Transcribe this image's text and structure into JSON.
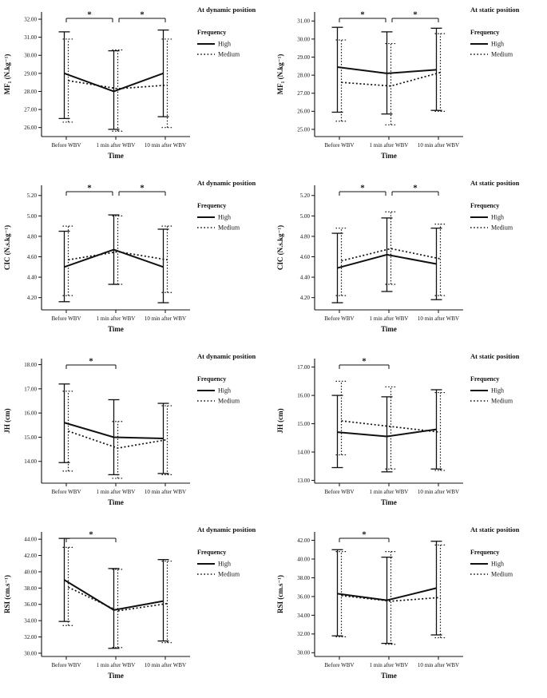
{
  "figure": {
    "xlabel": "Time",
    "categories": [
      "Before WBV",
      "1 min after WBV",
      "10 min after WBV"
    ],
    "legend": {
      "title": "Frequency",
      "items": [
        {
          "label": "High",
          "style": "solid"
        },
        {
          "label": "Medium",
          "style": "dotted"
        }
      ]
    },
    "line_color": "#111111",
    "significance_symbol": "*"
  },
  "chart_data": [
    {
      "id": "mf1-dynamic",
      "type": "line",
      "position_label": "At dynamic position",
      "ylabel": "MF₁ (N.kg⁻¹)",
      "xlabel": "Time",
      "categories": [
        "Before WBV",
        "1 min after WBV",
        "10 min after WBV"
      ],
      "yticks": [
        26,
        27,
        28,
        29,
        30,
        31,
        32
      ],
      "ylim": [
        25.5,
        32.4
      ],
      "series": [
        {
          "name": "High",
          "style": "solid",
          "means": [
            29.0,
            28.0,
            29.0
          ],
          "err_lo": [
            26.5,
            25.9,
            26.6
          ],
          "err_hi": [
            31.3,
            30.25,
            31.4
          ]
        },
        {
          "name": "Medium",
          "style": "dotted",
          "means": [
            28.6,
            28.15,
            28.35
          ],
          "err_lo": [
            26.3,
            25.8,
            26.0
          ],
          "err_hi": [
            30.9,
            30.3,
            30.9
          ]
        }
      ],
      "significance": [
        {
          "from": 0,
          "to": 1,
          "label": "*"
        },
        {
          "from": 1,
          "to": 2,
          "label": "*"
        }
      ]
    },
    {
      "id": "mf1-static",
      "type": "line",
      "position_label": "At static position",
      "ylabel": "MF₁ (N.kg⁻¹)",
      "xlabel": "Time",
      "categories": [
        "Before WBV",
        "1 min after WBV",
        "10 min after WBV"
      ],
      "yticks": [
        25,
        26,
        27,
        28,
        29,
        30,
        31
      ],
      "ylim": [
        24.6,
        31.5
      ],
      "series": [
        {
          "name": "High",
          "style": "solid",
          "means": [
            28.45,
            28.1,
            28.3
          ],
          "err_lo": [
            25.95,
            25.85,
            26.05
          ],
          "err_hi": [
            30.65,
            30.4,
            30.6
          ]
        },
        {
          "name": "Medium",
          "style": "dotted",
          "means": [
            27.6,
            27.4,
            28.15
          ],
          "err_lo": [
            25.45,
            25.25,
            26.0
          ],
          "err_hi": [
            29.95,
            29.75,
            30.3
          ]
        }
      ],
      "significance": [
        {
          "from": 0,
          "to": 1,
          "label": "*"
        },
        {
          "from": 1,
          "to": 2,
          "label": "*"
        }
      ]
    },
    {
      "id": "cic-dynamic",
      "type": "line",
      "position_label": "At dynamic position",
      "ylabel": "CIC (N.s.kg⁻¹)",
      "xlabel": "Time",
      "categories": [
        "Before WBV",
        "1 min after WBV",
        "10 min after WBV"
      ],
      "yticks": [
        4.2,
        4.4,
        4.6,
        4.8,
        5.0,
        5.2
      ],
      "ylim": [
        4.08,
        5.3
      ],
      "series": [
        {
          "name": "High",
          "style": "solid",
          "means": [
            4.5,
            4.67,
            4.5
          ],
          "err_lo": [
            4.16,
            4.33,
            4.15
          ],
          "err_hi": [
            4.85,
            5.01,
            4.87
          ]
        },
        {
          "name": "Medium",
          "style": "dotted",
          "means": [
            4.57,
            4.65,
            4.57
          ],
          "err_lo": [
            4.22,
            4.33,
            4.25
          ],
          "err_hi": [
            4.9,
            5.0,
            4.9
          ]
        }
      ],
      "significance": [
        {
          "from": 0,
          "to": 1,
          "label": "*"
        },
        {
          "from": 1,
          "to": 2,
          "label": "*"
        }
      ]
    },
    {
      "id": "cic-static",
      "type": "line",
      "position_label": "At static position",
      "ylabel": "CIC (N.s.kg⁻¹)",
      "xlabel": "Time",
      "categories": [
        "Before WBV",
        "1 min after WBV",
        "10 min after WBV"
      ],
      "yticks": [
        4.2,
        4.4,
        4.6,
        4.8,
        5.0,
        5.2
      ],
      "ylim": [
        4.08,
        5.3
      ],
      "series": [
        {
          "name": "High",
          "style": "solid",
          "means": [
            4.49,
            4.62,
            4.53
          ],
          "err_lo": [
            4.15,
            4.26,
            4.18
          ],
          "err_hi": [
            4.83,
            4.98,
            4.88
          ]
        },
        {
          "name": "Medium",
          "style": "dotted",
          "means": [
            4.56,
            4.68,
            4.58
          ],
          "err_lo": [
            4.22,
            4.33,
            4.22
          ],
          "err_hi": [
            4.88,
            5.04,
            4.92
          ]
        }
      ],
      "significance": [
        {
          "from": 0,
          "to": 1,
          "label": "*"
        },
        {
          "from": 1,
          "to": 2,
          "label": "*"
        }
      ]
    },
    {
      "id": "jh-dynamic",
      "type": "line",
      "position_label": "At dynamic position",
      "ylabel": "JH (cm)",
      "xlabel": "Time",
      "categories": [
        "Before WBV",
        "1 min after WBV",
        "10 min after WBV"
      ],
      "yticks": [
        14,
        15,
        16,
        17,
        18
      ],
      "ylim": [
        13.1,
        18.25
      ],
      "series": [
        {
          "name": "High",
          "style": "solid",
          "means": [
            15.6,
            15.0,
            14.95
          ],
          "err_lo": [
            13.95,
            13.45,
            13.5
          ],
          "err_hi": [
            17.2,
            16.55,
            16.4
          ]
        },
        {
          "name": "Medium",
          "style": "dotted",
          "means": [
            15.25,
            14.55,
            14.9
          ],
          "err_lo": [
            13.6,
            13.3,
            13.45
          ],
          "err_hi": [
            16.9,
            15.65,
            16.3
          ]
        }
      ],
      "significance": [
        {
          "from": 0,
          "to": 1,
          "label": "*"
        }
      ]
    },
    {
      "id": "jh-static",
      "type": "line",
      "position_label": "At static position",
      "ylabel": "JH (cm)",
      "xlabel": "Time",
      "categories": [
        "Before WBV",
        "1 min after WBV",
        "10 min after WBV"
      ],
      "yticks": [
        13,
        14,
        15,
        16,
        17
      ],
      "ylim": [
        12.9,
        17.3
      ],
      "series": [
        {
          "name": "High",
          "style": "solid",
          "means": [
            14.7,
            14.55,
            14.8
          ],
          "err_lo": [
            13.45,
            13.3,
            13.4
          ],
          "err_hi": [
            16.0,
            15.95,
            16.2
          ]
        },
        {
          "name": "Medium",
          "style": "dotted",
          "means": [
            15.1,
            14.9,
            14.7
          ],
          "err_lo": [
            13.9,
            13.4,
            13.35
          ],
          "err_hi": [
            16.5,
            16.3,
            16.1
          ]
        }
      ],
      "significance": [
        {
          "from": 0,
          "to": 1,
          "label": "*"
        }
      ]
    },
    {
      "id": "rsi-dynamic",
      "type": "line",
      "position_label": "At dynamic position",
      "ylabel": "RSI (cm.s⁻¹)",
      "xlabel": "Time",
      "categories": [
        "Before WBV",
        "1 min after WBV",
        "10 min after WBV"
      ],
      "yticks": [
        30,
        32,
        34,
        36,
        38,
        40,
        42,
        44
      ],
      "ylim": [
        29.6,
        44.9
      ],
      "series": [
        {
          "name": "High",
          "style": "solid",
          "means": [
            39.0,
            35.3,
            36.4
          ],
          "err_lo": [
            33.9,
            30.6,
            31.5
          ],
          "err_hi": [
            44.1,
            40.4,
            41.5
          ]
        },
        {
          "name": "Medium",
          "style": "dotted",
          "means": [
            38.1,
            35.2,
            36.1
          ],
          "err_lo": [
            33.4,
            30.7,
            31.3
          ],
          "err_hi": [
            43.0,
            40.3,
            41.3
          ]
        }
      ],
      "significance": [
        {
          "from": 0,
          "to": 1,
          "label": "*"
        }
      ]
    },
    {
      "id": "rsi-static",
      "type": "line",
      "position_label": "At static position",
      "ylabel": "RSI (cm.s⁻¹)",
      "xlabel": "Time",
      "categories": [
        "Before WBV",
        "1 min after WBV",
        "10 min after WBV"
      ],
      "yticks": [
        30,
        32,
        34,
        36,
        38,
        40,
        42
      ],
      "ylim": [
        29.6,
        42.9
      ],
      "series": [
        {
          "name": "High",
          "style": "solid",
          "means": [
            36.3,
            35.6,
            36.9
          ],
          "err_lo": [
            31.8,
            31.0,
            31.9
          ],
          "err_hi": [
            41.0,
            40.2,
            41.9
          ]
        },
        {
          "name": "Medium",
          "style": "dotted",
          "means": [
            36.1,
            35.5,
            35.9
          ],
          "err_lo": [
            31.7,
            30.9,
            31.6
          ],
          "err_hi": [
            40.8,
            40.8,
            41.5
          ]
        }
      ],
      "significance": [
        {
          "from": 0,
          "to": 1,
          "label": "*"
        }
      ]
    }
  ]
}
